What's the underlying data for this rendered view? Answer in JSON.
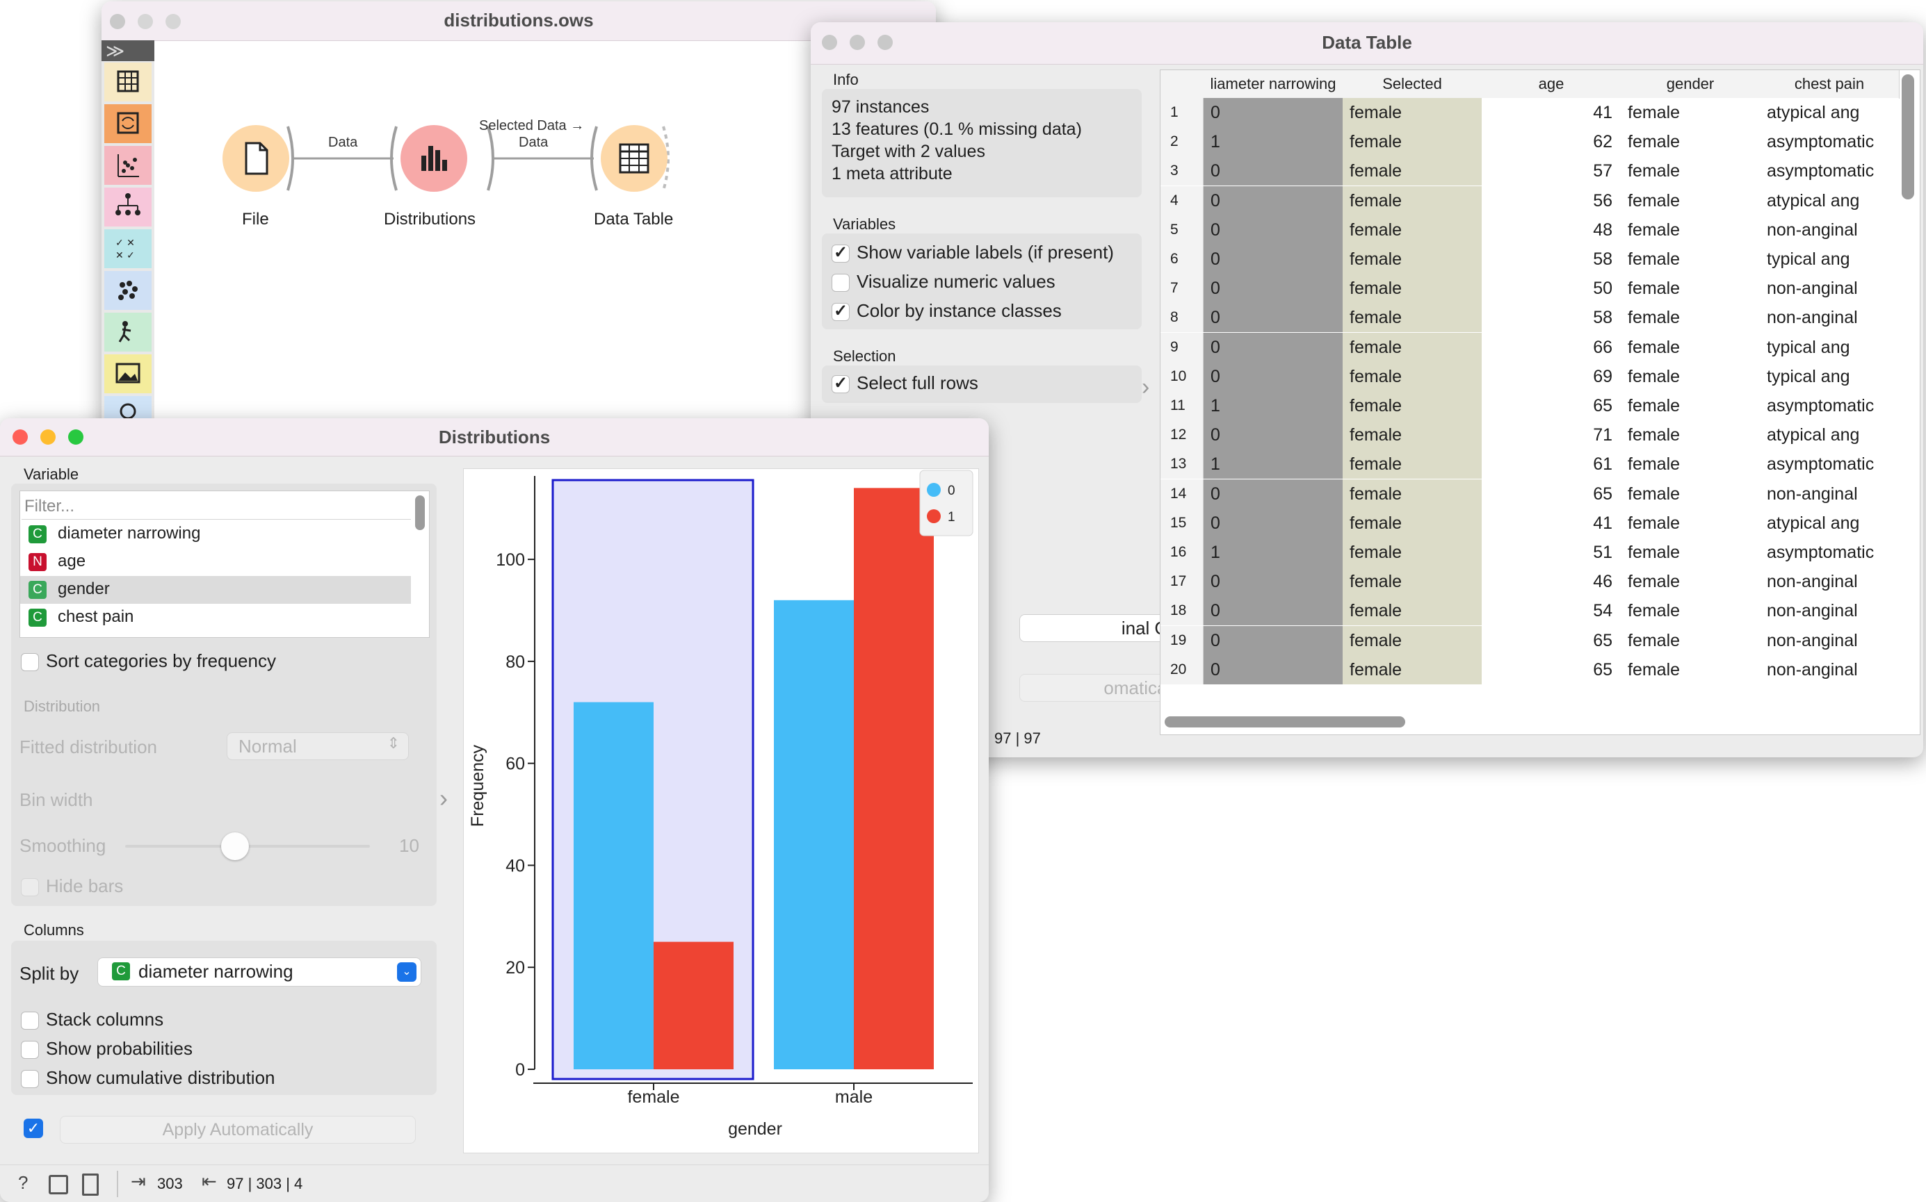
{
  "workflow": {
    "title": "distributions.ows",
    "nodes": [
      {
        "label": "File",
        "icon": "file-icon"
      },
      {
        "label": "Distributions",
        "icon": "bar-chart-icon"
      },
      {
        "label": "Data Table",
        "icon": "table-icon"
      }
    ],
    "links": [
      "Data",
      "Selected Data →",
      "Data"
    ],
    "toolbox_toggle": "≫"
  },
  "data_table": {
    "title": "Data Table",
    "info_title": "Info",
    "info_lines": [
      "97 instances",
      "13 features (0.1 % missing data)",
      "Target with 2 values",
      "1 meta attribute"
    ],
    "variables_title": "Variables",
    "options": [
      {
        "label": "Show variable labels (if present)",
        "checked": true
      },
      {
        "label": "Visualize numeric values",
        "checked": false
      },
      {
        "label": "Color by instance classes",
        "checked": true
      }
    ],
    "selection_title": "Selection",
    "select_full_rows": "Select full rows",
    "restore_button": "inal Order",
    "send_button": "omatically",
    "status": "97 | 97",
    "columns": [
      "liameter narrowing",
      "Selected",
      "age",
      "gender",
      "chest pain"
    ],
    "rows": [
      [
        "1",
        "0",
        "female",
        "41",
        "female",
        "atypical ang"
      ],
      [
        "2",
        "1",
        "female",
        "62",
        "female",
        "asymptomatic"
      ],
      [
        "3",
        "0",
        "female",
        "57",
        "female",
        "asymptomatic"
      ],
      [
        "4",
        "0",
        "female",
        "56",
        "female",
        "atypical ang"
      ],
      [
        "5",
        "0",
        "female",
        "48",
        "female",
        "non-anginal"
      ],
      [
        "6",
        "0",
        "female",
        "58",
        "female",
        "typical ang"
      ],
      [
        "7",
        "0",
        "female",
        "50",
        "female",
        "non-anginal"
      ],
      [
        "8",
        "0",
        "female",
        "58",
        "female",
        "non-anginal"
      ],
      [
        "9",
        "0",
        "female",
        "66",
        "female",
        "typical ang"
      ],
      [
        "10",
        "0",
        "female",
        "69",
        "female",
        "typical ang"
      ],
      [
        "11",
        "1",
        "female",
        "65",
        "female",
        "asymptomatic"
      ],
      [
        "12",
        "0",
        "female",
        "71",
        "female",
        "atypical ang"
      ],
      [
        "13",
        "1",
        "female",
        "61",
        "female",
        "asymptomatic"
      ],
      [
        "14",
        "0",
        "female",
        "65",
        "female",
        "non-anginal"
      ],
      [
        "15",
        "0",
        "female",
        "41",
        "female",
        "atypical ang"
      ],
      [
        "16",
        "1",
        "female",
        "51",
        "female",
        "asymptomatic"
      ],
      [
        "17",
        "0",
        "female",
        "46",
        "female",
        "non-anginal"
      ],
      [
        "18",
        "0",
        "female",
        "54",
        "female",
        "non-anginal"
      ],
      [
        "19",
        "0",
        "female",
        "65",
        "female",
        "non-anginal"
      ],
      [
        "20",
        "0",
        "female",
        "65",
        "female",
        "non-anginal"
      ]
    ]
  },
  "distributions": {
    "title": "Distributions",
    "variable_title": "Variable",
    "filter_placeholder": "Filter...",
    "variables": [
      {
        "tag": "C",
        "name": "diameter narrowing",
        "color": "#1f9a3a"
      },
      {
        "tag": "N",
        "name": "age",
        "color": "#c8102e"
      },
      {
        "tag": "C",
        "name": "gender",
        "color": "#1f9a3a"
      },
      {
        "tag": "C",
        "name": "chest pain",
        "color": "#1f9a3a"
      }
    ],
    "sort_label": "Sort categories by frequency",
    "distribution_title": "Distribution",
    "fitted_label": "Fitted distribution",
    "fitted_value": "Normal",
    "bin_width_label": "Bin width",
    "smoothing_label": "Smoothing",
    "smoothing_value": "10",
    "hide_bars_label": "Hide bars",
    "columns_title": "Columns",
    "split_by_label": "Split by",
    "split_by_tag": "C",
    "split_by_value": "diameter narrowing",
    "stack_label": "Stack columns",
    "prob_label": "Show probabilities",
    "cumulative_label": "Show cumulative distribution",
    "apply_label": "Apply Automatically",
    "status_in": "303",
    "status_out": "97 | 303 | 4"
  },
  "chart_data": {
    "type": "bar",
    "categories": [
      "female",
      "male"
    ],
    "series": [
      {
        "name": "0",
        "values": [
          72,
          92
        ],
        "color": "#45bcf7"
      },
      {
        "name": "1",
        "values": [
          25,
          114
        ],
        "color": "#ee4433"
      }
    ],
    "xlabel": "gender",
    "ylabel": "Frequency",
    "ylim": [
      0,
      115
    ],
    "yticks": [
      0,
      20,
      40,
      60,
      80,
      100
    ],
    "selected_category": "female",
    "legend_position": "top-right",
    "grid": false
  }
}
